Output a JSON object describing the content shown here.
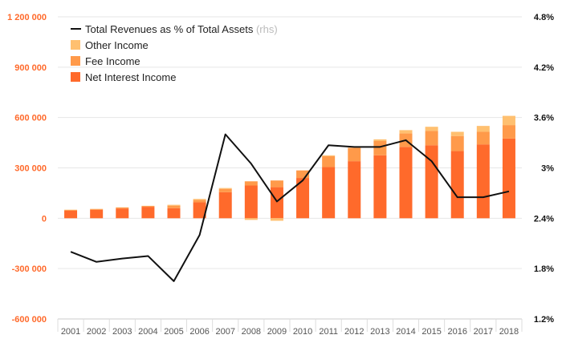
{
  "chart_data": {
    "type": "bar",
    "categories": [
      "2001",
      "2002",
      "2003",
      "2004",
      "2005",
      "2006",
      "2007",
      "2008",
      "2009",
      "2010",
      "2011",
      "2012",
      "2013",
      "2014",
      "2015",
      "2016",
      "2017",
      "2018"
    ],
    "series": [
      {
        "name": "Net Interest Income",
        "axis": "left",
        "color": "#ff6a2b",
        "values": [
          45000,
          50000,
          58000,
          68000,
          60000,
          95000,
          155000,
          195000,
          185000,
          240000,
          305000,
          340000,
          375000,
          425000,
          435000,
          400000,
          440000,
          475000
        ]
      },
      {
        "name": "Fee Income",
        "axis": "left",
        "color": "#ff9a4a",
        "values": [
          5000,
          5000,
          6000,
          5000,
          15000,
          15000,
          20000,
          25000,
          40000,
          45000,
          65000,
          80000,
          85000,
          80000,
          85000,
          90000,
          75000,
          80000
        ]
      },
      {
        "name": "Other Income",
        "axis": "left",
        "color": "#ffc070",
        "values": [
          1000,
          1000,
          1000,
          1000,
          5000,
          5000,
          5000,
          -10000,
          -15000,
          0,
          5000,
          0,
          10000,
          20000,
          25000,
          25000,
          35000,
          55000
        ]
      },
      {
        "name": "Total Revenues as % of Total Assets",
        "axis": "right",
        "type": "line",
        "color": "#111111",
        "values": [
          2.0,
          1.88,
          1.92,
          1.95,
          1.65,
          2.2,
          3.4,
          3.05,
          2.6,
          2.85,
          3.27,
          3.25,
          3.25,
          3.33,
          3.08,
          2.65,
          2.65,
          2.72
        ]
      }
    ],
    "legend_note": "(rhs)",
    "y_left": {
      "min": -600000,
      "max": 1200000,
      "ticks": [
        -600000,
        -300000,
        0,
        300000,
        600000,
        900000,
        1200000
      ],
      "tick_labels": [
        "-600 000",
        "-300 000",
        "0",
        "300 000",
        "600 000",
        "900 000",
        "1 200 000"
      ],
      "color": "#ff6a2b"
    },
    "y_right": {
      "min": 1.2,
      "max": 4.8,
      "ticks": [
        1.2,
        1.8,
        2.4,
        3.0,
        3.6,
        4.2,
        4.8
      ],
      "tick_labels": [
        "1.2%",
        "1.8%",
        "2.4%",
        "3%",
        "3.6%",
        "4.2%",
        "4.8%"
      ]
    },
    "grid": true,
    "legend_position": "top-left"
  }
}
